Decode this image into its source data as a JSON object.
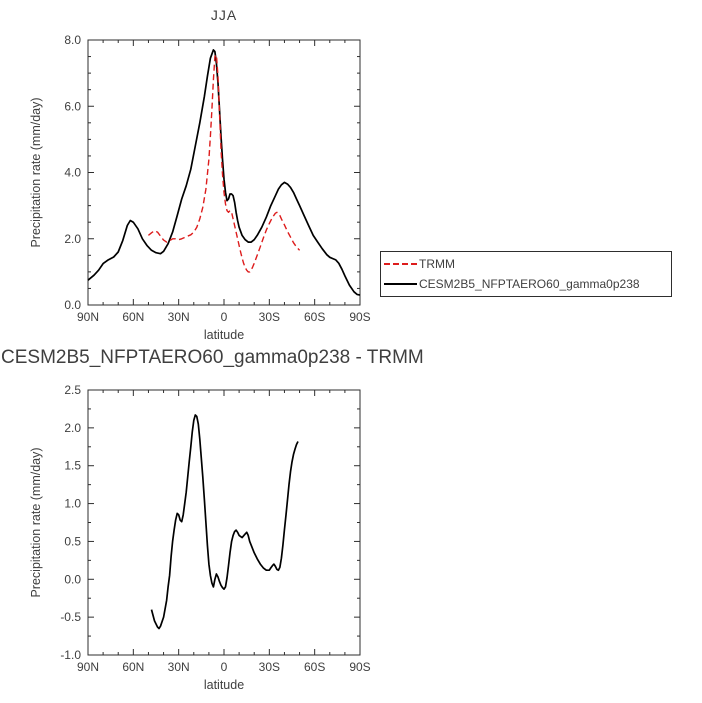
{
  "styles": {
    "text_color": "#3f3f3f",
    "frame_color": "#2e2e2e",
    "trmm_red": "#dd1c1c",
    "model_black": "#000000",
    "background": "#ffffff"
  },
  "chart_data": [
    {
      "type": "line",
      "title": "JJA",
      "xlabel": "latitude",
      "ylabel": "Precipitation rate (mm/day)",
      "xlim": [
        90,
        -90
      ],
      "ylim": [
        0,
        8
      ],
      "x_ticks": {
        "values": [
          90,
          60,
          30,
          0,
          -30,
          -60,
          -90
        ],
        "labels": [
          "90N",
          "60N",
          "30N",
          "0",
          "30S",
          "60S",
          "90S"
        ],
        "minor_step": 10
      },
      "y_ticks": {
        "values": [
          0,
          2,
          4,
          6,
          8
        ],
        "labels": [
          "0.0",
          "2.0",
          "4.0",
          "6.0",
          "8.0"
        ],
        "minor_step": 0.5
      },
      "grid": false,
      "legend": {
        "position": "outside-right",
        "entries": [
          {
            "label": "TRMM",
            "color": "#dd1c1c",
            "dashed": true
          },
          {
            "label": "CESM2B5_NFPTAERO60_gamma0p238",
            "color": "#000000",
            "dashed": false
          }
        ]
      },
      "series": [
        {
          "name": "TRMM",
          "color": "#dd1c1c",
          "dash": "6,3.5",
          "width": 1.4,
          "points": [
            [
              50,
              2.1
            ],
            [
              48,
              2.18
            ],
            [
              46,
              2.24
            ],
            [
              44,
              2.2
            ],
            [
              42,
              2.08
            ],
            [
              40,
              1.96
            ],
            [
              38,
              1.9
            ],
            [
              36,
              1.94
            ],
            [
              34,
              2.0
            ],
            [
              32,
              2.0
            ],
            [
              30,
              1.97
            ],
            [
              28,
              2.0
            ],
            [
              26,
              2.04
            ],
            [
              24,
              2.08
            ],
            [
              22,
              2.12
            ],
            [
              20,
              2.2
            ],
            [
              18,
              2.35
            ],
            [
              16,
              2.6
            ],
            [
              14,
              2.95
            ],
            [
              12,
              3.5
            ],
            [
              10,
              4.4
            ],
            [
              9,
              5.1
            ],
            [
              8,
              5.9
            ],
            [
              7,
              6.8
            ],
            [
              6,
              7.5
            ],
            [
              5,
              7.55
            ],
            [
              4,
              6.9
            ],
            [
              3,
              5.8
            ],
            [
              2,
              4.7
            ],
            [
              1,
              3.95
            ],
            [
              0,
              3.4
            ],
            [
              -1,
              3.05
            ],
            [
              -2,
              2.85
            ],
            [
              -3,
              2.8
            ],
            [
              -4,
              2.85
            ],
            [
              -5,
              2.8
            ],
            [
              -6,
              2.6
            ],
            [
              -7,
              2.4
            ],
            [
              -8,
              2.2
            ],
            [
              -9,
              2.0
            ],
            [
              -10,
              1.8
            ],
            [
              -11,
              1.6
            ],
            [
              -12,
              1.42
            ],
            [
              -13,
              1.26
            ],
            [
              -14,
              1.13
            ],
            [
              -15,
              1.05
            ],
            [
              -16,
              1.0
            ],
            [
              -17,
              1.0
            ],
            [
              -18,
              1.06
            ],
            [
              -19,
              1.15
            ],
            [
              -20,
              1.26
            ],
            [
              -22,
              1.5
            ],
            [
              -24,
              1.76
            ],
            [
              -26,
              2.02
            ],
            [
              -28,
              2.26
            ],
            [
              -30,
              2.46
            ],
            [
              -32,
              2.64
            ],
            [
              -34,
              2.77
            ],
            [
              -35,
              2.8
            ],
            [
              -36,
              2.77
            ],
            [
              -37,
              2.7
            ],
            [
              -38,
              2.6
            ],
            [
              -40,
              2.42
            ],
            [
              -42,
              2.22
            ],
            [
              -44,
              2.05
            ],
            [
              -46,
              1.88
            ],
            [
              -48,
              1.75
            ],
            [
              -50,
              1.65
            ]
          ]
        },
        {
          "name": "CESM2B5_NFPTAERO60_gamma0p238",
          "color": "#000000",
          "dash": "",
          "width": 1.7,
          "points": [
            [
              90,
              0.75
            ],
            [
              86,
              0.9
            ],
            [
              83,
              1.05
            ],
            [
              80,
              1.25
            ],
            [
              77,
              1.35
            ],
            [
              73,
              1.45
            ],
            [
              70,
              1.6
            ],
            [
              67,
              1.95
            ],
            [
              64,
              2.4
            ],
            [
              62,
              2.55
            ],
            [
              60,
              2.5
            ],
            [
              57,
              2.3
            ],
            [
              54,
              2.0
            ],
            [
              51,
              1.8
            ],
            [
              48,
              1.65
            ],
            [
              45,
              1.58
            ],
            [
              42,
              1.55
            ],
            [
              40,
              1.62
            ],
            [
              37,
              1.85
            ],
            [
              34,
              2.2
            ],
            [
              31,
              2.7
            ],
            [
              28,
              3.2
            ],
            [
              25,
              3.6
            ],
            [
              22,
              4.1
            ],
            [
              19,
              4.8
            ],
            [
              16,
              5.5
            ],
            [
              13,
              6.3
            ],
            [
              11,
              6.9
            ],
            [
              9,
              7.45
            ],
            [
              7,
              7.7
            ],
            [
              6,
              7.65
            ],
            [
              5,
              7.3
            ],
            [
              4,
              6.7
            ],
            [
              3,
              5.9
            ],
            [
              2,
              5.1
            ],
            [
              1,
              4.4
            ],
            [
              0,
              3.8
            ],
            [
              -1,
              3.4
            ],
            [
              -2,
              3.15
            ],
            [
              -3,
              3.2
            ],
            [
              -4,
              3.35
            ],
            [
              -5,
              3.35
            ],
            [
              -6,
              3.3
            ],
            [
              -7,
              3.1
            ],
            [
              -8,
              2.8
            ],
            [
              -9,
              2.55
            ],
            [
              -10,
              2.35
            ],
            [
              -12,
              2.1
            ],
            [
              -14,
              1.97
            ],
            [
              -16,
              1.9
            ],
            [
              -18,
              1.9
            ],
            [
              -20,
              1.97
            ],
            [
              -22,
              2.1
            ],
            [
              -25,
              2.35
            ],
            [
              -28,
              2.65
            ],
            [
              -31,
              3.0
            ],
            [
              -34,
              3.3
            ],
            [
              -36,
              3.5
            ],
            [
              -38,
              3.63
            ],
            [
              -40,
              3.7
            ],
            [
              -42,
              3.65
            ],
            [
              -44,
              3.55
            ],
            [
              -46,
              3.4
            ],
            [
              -48,
              3.2
            ],
            [
              -50,
              3.0
            ],
            [
              -53,
              2.7
            ],
            [
              -56,
              2.4
            ],
            [
              -59,
              2.1
            ],
            [
              -62,
              1.9
            ],
            [
              -65,
              1.7
            ],
            [
              -68,
              1.52
            ],
            [
              -70,
              1.44
            ],
            [
              -72,
              1.4
            ],
            [
              -74,
              1.36
            ],
            [
              -76,
              1.26
            ],
            [
              -78,
              1.08
            ],
            [
              -80,
              0.88
            ],
            [
              -83,
              0.6
            ],
            [
              -86,
              0.4
            ],
            [
              -88,
              0.32
            ],
            [
              -90,
              0.3
            ]
          ]
        }
      ]
    },
    {
      "type": "line",
      "title": "CESM2B5_NFPTAERO60_gamma0p238 - TRMM",
      "xlabel": "latitude",
      "ylabel": "Precipitation rate (mm/day)",
      "xlim": [
        90,
        -90
      ],
      "ylim": [
        -1,
        2.5
      ],
      "x_ticks": {
        "values": [
          90,
          60,
          30,
          0,
          -30,
          -60,
          -90
        ],
        "labels": [
          "90N",
          "60N",
          "30N",
          "0",
          "30S",
          "60S",
          "90S"
        ],
        "minor_step": 10
      },
      "y_ticks": {
        "values": [
          -1,
          -0.5,
          0,
          0.5,
          1,
          1.5,
          2,
          2.5
        ],
        "labels": [
          "-1.0",
          "-0.5",
          "0.0",
          "0.5",
          "1.0",
          "1.5",
          "2.0",
          "2.5"
        ],
        "minor_step": 0.25
      },
      "grid": false,
      "series": [
        {
          "name": "CESM2B5_NFPTAERO60_gamma0p238 - TRMM",
          "color": "#000000",
          "dash": "",
          "width": 1.7,
          "points": [
            [
              48,
              -0.4
            ],
            [
              46,
              -0.55
            ],
            [
              44,
              -0.63
            ],
            [
              43,
              -0.65
            ],
            [
              42,
              -0.62
            ],
            [
              40,
              -0.5
            ],
            [
              38,
              -0.28
            ],
            [
              37,
              -0.1
            ],
            [
              36,
              0.05
            ],
            [
              35,
              0.3
            ],
            [
              34,
              0.5
            ],
            [
              33,
              0.65
            ],
            [
              32,
              0.78
            ],
            [
              31,
              0.87
            ],
            [
              30,
              0.85
            ],
            [
              29,
              0.78
            ],
            [
              28,
              0.76
            ],
            [
              27,
              0.85
            ],
            [
              26,
              1.0
            ],
            [
              25,
              1.15
            ],
            [
              24,
              1.35
            ],
            [
              23,
              1.55
            ],
            [
              22,
              1.75
            ],
            [
              21,
              1.95
            ],
            [
              20,
              2.1
            ],
            [
              19,
              2.17
            ],
            [
              18,
              2.15
            ],
            [
              17,
              2.05
            ],
            [
              16,
              1.85
            ],
            [
              15,
              1.6
            ],
            [
              14,
              1.35
            ],
            [
              13,
              1.05
            ],
            [
              12,
              0.75
            ],
            [
              11,
              0.45
            ],
            [
              10,
              0.2
            ],
            [
              9,
              0.05
            ],
            [
              8,
              -0.05
            ],
            [
              7,
              -0.1
            ],
            [
              6,
              0.0
            ],
            [
              5,
              0.07
            ],
            [
              4,
              0.03
            ],
            [
              3,
              -0.03
            ],
            [
              2,
              -0.08
            ],
            [
              1,
              -0.11
            ],
            [
              0,
              -0.13
            ],
            [
              -1,
              -0.1
            ],
            [
              -2,
              0.02
            ],
            [
              -3,
              0.18
            ],
            [
              -4,
              0.35
            ],
            [
              -5,
              0.5
            ],
            [
              -6,
              0.58
            ],
            [
              -7,
              0.63
            ],
            [
              -8,
              0.65
            ],
            [
              -9,
              0.62
            ],
            [
              -10,
              0.58
            ],
            [
              -12,
              0.55
            ],
            [
              -14,
              0.6
            ],
            [
              -15,
              0.62
            ],
            [
              -16,
              0.58
            ],
            [
              -17,
              0.5
            ],
            [
              -18,
              0.45
            ],
            [
              -20,
              0.35
            ],
            [
              -22,
              0.27
            ],
            [
              -24,
              0.2
            ],
            [
              -26,
              0.15
            ],
            [
              -28,
              0.12
            ],
            [
              -30,
              0.12
            ],
            [
              -31,
              0.15
            ],
            [
              -32,
              0.18
            ],
            [
              -33,
              0.2
            ],
            [
              -34,
              0.17
            ],
            [
              -35,
              0.13
            ],
            [
              -36,
              0.12
            ],
            [
              -37,
              0.16
            ],
            [
              -38,
              0.28
            ],
            [
              -39,
              0.45
            ],
            [
              -40,
              0.65
            ],
            [
              -41,
              0.85
            ],
            [
              -42,
              1.05
            ],
            [
              -43,
              1.25
            ],
            [
              -44,
              1.42
            ],
            [
              -45,
              1.55
            ],
            [
              -46,
              1.65
            ],
            [
              -47,
              1.72
            ],
            [
              -48,
              1.78
            ],
            [
              -49,
              1.82
            ]
          ]
        }
      ]
    }
  ]
}
